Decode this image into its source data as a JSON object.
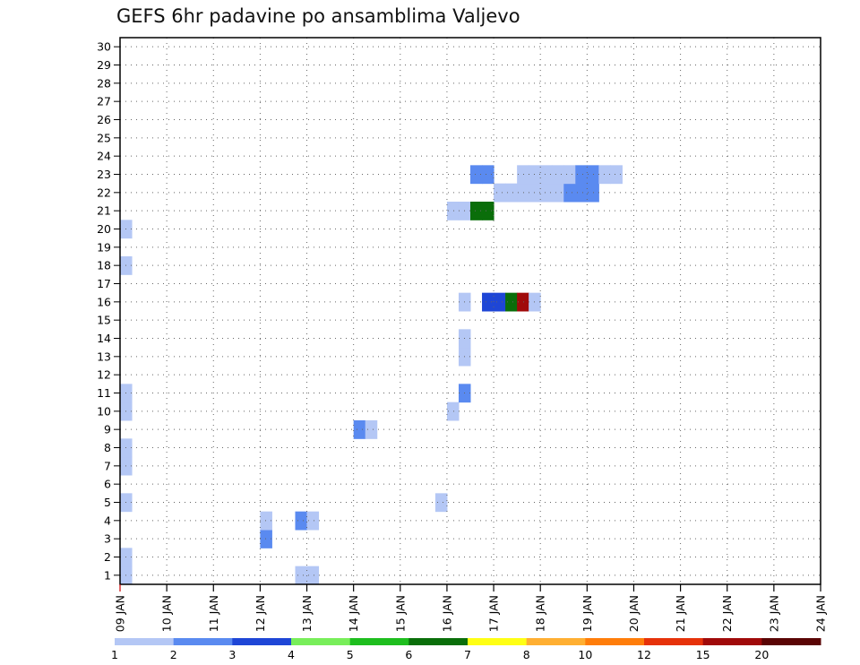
{
  "title": "GEFS 6hr padavine po ansamblima Valjevo",
  "chart_data": {
    "type": "heatmap",
    "title": "GEFS 6hr padavine po ansamblima Valjevo",
    "xlabel": "",
    "ylabel": "",
    "x_ticks": [
      "09 JAN",
      "10 JAN",
      "11 JAN",
      "12 JAN",
      "13 JAN",
      "14 JAN",
      "15 JAN",
      "16 JAN",
      "17 JAN",
      "18 JAN",
      "19 JAN",
      "20 JAN",
      "21 JAN",
      "22 JAN",
      "23 JAN",
      "24 JAN"
    ],
    "y_ticks": [
      "1",
      "2",
      "3",
      "4",
      "5",
      "6",
      "7",
      "8",
      "9",
      "10",
      "11",
      "12",
      "13",
      "14",
      "15",
      "16",
      "17",
      "18",
      "19",
      "20",
      "21",
      "22",
      "23",
      "24",
      "25",
      "26",
      "27",
      "28",
      "29",
      "30"
    ],
    "xlim": [
      0,
      60
    ],
    "ylim": [
      0.5,
      30.5
    ],
    "x_unit": "6-hour step from 09 JAN 00Z",
    "grid": true,
    "legend": {
      "placement": "bottom",
      "labels": [
        "1",
        "2",
        "3",
        "4",
        "5",
        "6",
        "7",
        "8",
        "10",
        "12",
        "15",
        "20"
      ],
      "colors": [
        "#b4c7f5",
        "#5a8af0",
        "#1e46d6",
        "#78ee5a",
        "#1ebe1e",
        "#0a6e0a",
        "#ffff14",
        "#ffaf32",
        "#ff7d0a",
        "#e6320a",
        "#a00a0a",
        "#5a0505"
      ]
    },
    "cells": [
      {
        "x": 0,
        "y": 1,
        "v": 1.5
      },
      {
        "x": 0,
        "y": 2,
        "v": 1.5
      },
      {
        "x": 0,
        "y": 5,
        "v": 1.5
      },
      {
        "x": 0,
        "y": 7,
        "v": 1.5
      },
      {
        "x": 0,
        "y": 8,
        "v": 1.5
      },
      {
        "x": 0,
        "y": 10,
        "v": 1.5
      },
      {
        "x": 0,
        "y": 11,
        "v": 1.5
      },
      {
        "x": 0,
        "y": 18,
        "v": 1.5
      },
      {
        "x": 0,
        "y": 20,
        "v": 1.5
      },
      {
        "x": 12,
        "y": 3,
        "v": 2.5
      },
      {
        "x": 12,
        "y": 4,
        "v": 1.5
      },
      {
        "x": 15,
        "y": 1,
        "v": 1.5
      },
      {
        "x": 15,
        "y": 4,
        "v": 2.5
      },
      {
        "x": 16,
        "y": 1,
        "v": 1.5
      },
      {
        "x": 16,
        "y": 4,
        "v": 1.5
      },
      {
        "x": 20,
        "y": 9,
        "v": 2.5
      },
      {
        "x": 21,
        "y": 9,
        "v": 1.5
      },
      {
        "x": 27,
        "y": 5,
        "v": 1.5
      },
      {
        "x": 28,
        "y": 10,
        "v": 1.5
      },
      {
        "x": 29,
        "y": 11,
        "v": 2.5
      },
      {
        "x": 29,
        "y": 13,
        "v": 1.5
      },
      {
        "x": 29,
        "y": 14,
        "v": 1.5
      },
      {
        "x": 29,
        "y": 16,
        "v": 1.5
      },
      {
        "x": 31,
        "y": 16,
        "v": 3.5
      },
      {
        "x": 32,
        "y": 16,
        "v": 3.5
      },
      {
        "x": 33,
        "y": 16,
        "v": 6.5
      },
      {
        "x": 34,
        "y": 16,
        "v": 15
      },
      {
        "x": 35,
        "y": 16,
        "v": 1.5
      },
      {
        "x": 28,
        "y": 21,
        "v": 1.5
      },
      {
        "x": 29,
        "y": 21,
        "v": 1.5
      },
      {
        "x": 30,
        "y": 21,
        "v": 6.5
      },
      {
        "x": 31,
        "y": 21,
        "v": 6.5
      },
      {
        "x": 32,
        "y": 22,
        "v": 1.5
      },
      {
        "x": 33,
        "y": 22,
        "v": 1.5
      },
      {
        "x": 34,
        "y": 22,
        "v": 1.5
      },
      {
        "x": 35,
        "y": 22,
        "v": 1.5
      },
      {
        "x": 36,
        "y": 22,
        "v": 1.5
      },
      {
        "x": 37,
        "y": 22,
        "v": 1.5
      },
      {
        "x": 38,
        "y": 22,
        "v": 2.5
      },
      {
        "x": 39,
        "y": 22,
        "v": 2.5
      },
      {
        "x": 40,
        "y": 22,
        "v": 2.5
      },
      {
        "x": 30,
        "y": 23,
        "v": 2.5
      },
      {
        "x": 31,
        "y": 23,
        "v": 2.5
      },
      {
        "x": 34,
        "y": 23,
        "v": 1.5
      },
      {
        "x": 35,
        "y": 23,
        "v": 1.5
      },
      {
        "x": 36,
        "y": 23,
        "v": 1.5
      },
      {
        "x": 37,
        "y": 23,
        "v": 1.5
      },
      {
        "x": 38,
        "y": 23,
        "v": 1.5
      },
      {
        "x": 39,
        "y": 23,
        "v": 2.5
      },
      {
        "x": 40,
        "y": 23,
        "v": 2.5
      },
      {
        "x": 41,
        "y": 23,
        "v": 1.5
      },
      {
        "x": 42,
        "y": 23,
        "v": 1.5
      }
    ]
  }
}
